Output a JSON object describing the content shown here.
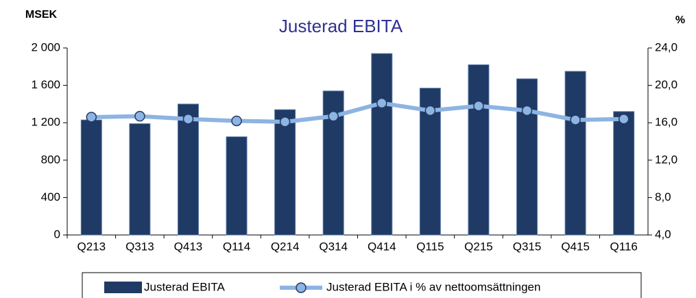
{
  "chart_data": {
    "type": "bar_line",
    "title": "Justerad EBITA",
    "y_label": "MSEK",
    "y2_label": "%",
    "categories": [
      "Q213",
      "Q313",
      "Q413",
      "Q114",
      "Q214",
      "Q314",
      "Q414",
      "Q115",
      "Q215",
      "Q315",
      "Q415",
      "Q116"
    ],
    "series": [
      {
        "name": "Justerad EBITA",
        "type": "bar",
        "color": "#1f3a64",
        "values": [
          1230,
          1190,
          1400,
          1050,
          1340,
          1540,
          1940,
          1570,
          1820,
          1670,
          1750,
          1320
        ]
      },
      {
        "name": "Justerad EBITA i % av nettoomsättningen",
        "type": "line",
        "axis": "y2",
        "color": "#8db4e2",
        "values": [
          16.6,
          16.7,
          16.4,
          16.2,
          16.1,
          16.7,
          18.1,
          17.3,
          17.8,
          17.3,
          16.3,
          16.4
        ]
      }
    ],
    "ylim": [
      0,
      2000
    ],
    "yticks": [
      0,
      400,
      800,
      {
        "value": 1200,
        "label": "1 200"
      },
      {
        "value": 1600,
        "label": "1 600"
      },
      {
        "value": 2000,
        "label": "2 000"
      }
    ],
    "y2lim": [
      4,
      24
    ],
    "y2ticks": [
      {
        "value": 4,
        "label": "4,0"
      },
      {
        "value": 8,
        "label": "8,0"
      },
      {
        "value": 12,
        "label": "12,0"
      },
      {
        "value": 16,
        "label": "16,0"
      },
      {
        "value": 20,
        "label": "20,0"
      },
      {
        "value": 24,
        "label": "24,0"
      }
    ]
  }
}
